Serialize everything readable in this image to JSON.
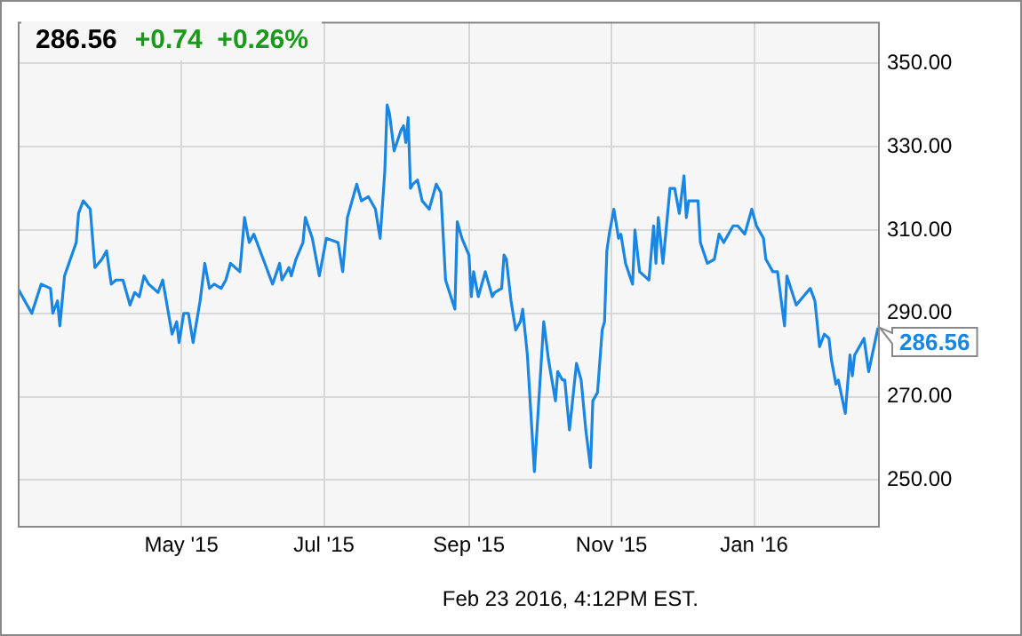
{
  "chart_data": {
    "type": "line",
    "title": "286.56",
    "subtitle": "+0.74  +0.26%",
    "color": "#1a86e3",
    "x": [
      "2015-02-20",
      "2015-02-23",
      "2015-02-26",
      "2015-03-02",
      "2015-03-06",
      "2015-03-07",
      "2015-03-09",
      "2015-03-10",
      "2015-03-12",
      "2015-03-17",
      "2015-03-18",
      "2015-03-20",
      "2015-03-23",
      "2015-03-25",
      "2015-03-28",
      "2015-03-30",
      "2015-04-01",
      "2015-04-03",
      "2015-04-06",
      "2015-04-09",
      "2015-04-11",
      "2015-04-13",
      "2015-04-15",
      "2015-04-17",
      "2015-04-21",
      "2015-04-23",
      "2015-04-27",
      "2015-04-29",
      "2015-04-30",
      "2015-05-02",
      "2015-05-04",
      "2015-05-06",
      "2015-05-09",
      "2015-05-11",
      "2015-05-13",
      "2015-05-15",
      "2015-05-18",
      "2015-05-20",
      "2015-05-22",
      "2015-05-26",
      "2015-05-28",
      "2015-05-30",
      "2015-06-01",
      "2015-06-03",
      "2015-06-05",
      "2015-06-09",
      "2015-06-12",
      "2015-06-13",
      "2015-06-16",
      "2015-06-17",
      "2015-06-19",
      "2015-06-22",
      "2015-06-23",
      "2015-06-26",
      "2015-06-29",
      "2015-07-02",
      "2015-07-07",
      "2015-07-09",
      "2015-07-11",
      "2015-07-15",
      "2015-07-17",
      "2015-07-20",
      "2015-07-23",
      "2015-07-25",
      "2015-07-27",
      "2015-07-28",
      "2015-07-29",
      "2015-07-31",
      "2015-08-03",
      "2015-08-04",
      "2015-08-05",
      "2015-08-06",
      "2015-08-07",
      "2015-08-08",
      "2015-08-10",
      "2015-08-12",
      "2015-08-15",
      "2015-08-18",
      "2015-08-20",
      "2015-08-22",
      "2015-08-26",
      "2015-08-27",
      "2015-08-29",
      "2015-09-01",
      "2015-09-02",
      "2015-09-03",
      "2015-09-05",
      "2015-09-08",
      "2015-09-11",
      "2015-09-12",
      "2015-09-15",
      "2015-09-16",
      "2015-09-17",
      "2015-09-19",
      "2015-09-21",
      "2015-09-23",
      "2015-09-24",
      "2015-09-26",
      "2015-09-29",
      "2015-10-03",
      "2015-10-05",
      "2015-10-08",
      "2015-10-09",
      "2015-10-11",
      "2015-10-12",
      "2015-10-14",
      "2015-10-17",
      "2015-10-19",
      "2015-10-21",
      "2015-10-23",
      "2015-10-24",
      "2015-10-26",
      "2015-10-28",
      "2015-10-29",
      "2015-10-30",
      "2015-10-31",
      "2015-11-02",
      "2015-11-04",
      "2015-11-05",
      "2015-11-07",
      "2015-11-10",
      "2015-11-11",
      "2015-11-13",
      "2015-11-17",
      "2015-11-19",
      "2015-11-20",
      "2015-11-21",
      "2015-11-23",
      "2015-11-26",
      "2015-11-28",
      "2015-11-30",
      "2015-12-02",
      "2015-12-03",
      "2015-12-04",
      "2015-12-08",
      "2015-12-09",
      "2015-12-12",
      "2015-12-15",
      "2015-12-17",
      "2015-12-19",
      "2015-12-23",
      "2015-12-25",
      "2015-12-28",
      "2015-12-31",
      "2016-01-02",
      "2016-01-05",
      "2016-01-06",
      "2016-01-09",
      "2016-01-11",
      "2016-01-14",
      "2016-01-15",
      "2016-01-19",
      "2016-01-22",
      "2016-01-25",
      "2016-01-27",
      "2016-01-29",
      "2016-01-31",
      "2016-02-02",
      "2016-02-03",
      "2016-02-05",
      "2016-02-06",
      "2016-02-09",
      "2016-02-11",
      "2016-02-12",
      "2016-02-13",
      "2016-02-17",
      "2016-02-19",
      "2016-02-23"
    ],
    "values": [
      296,
      293,
      290,
      297,
      296,
      290,
      293,
      287,
      299,
      307,
      314,
      317,
      315,
      301,
      303,
      305,
      297,
      298,
      298,
      292,
      295,
      294,
      299,
      297,
      295,
      298,
      285,
      288,
      283,
      290,
      290,
      283,
      293,
      302,
      296,
      297,
      296,
      298,
      302,
      300,
      313,
      307,
      309,
      306,
      303,
      297,
      302,
      298,
      301,
      299,
      303,
      307,
      313,
      308,
      299,
      308,
      307,
      300,
      313,
      321,
      317,
      318,
      315,
      308,
      324,
      340,
      338,
      329,
      334,
      335,
      331,
      337,
      320,
      321,
      322,
      317,
      315,
      321,
      319,
      298,
      291,
      312,
      308,
      304,
      294,
      300,
      294,
      300,
      294,
      295,
      296,
      304,
      303,
      293,
      286,
      288,
      291,
      280,
      252,
      288,
      279,
      269,
      276,
      274,
      274,
      262,
      278,
      274,
      262,
      253,
      269,
      271,
      286,
      288,
      305,
      309,
      315,
      308,
      309,
      302,
      297,
      310,
      300,
      298,
      311,
      302,
      313,
      302,
      320,
      320,
      314,
      323,
      313,
      317,
      317,
      307,
      302,
      303,
      309,
      307,
      311,
      311,
      309,
      315,
      311,
      308,
      303,
      300,
      300,
      287,
      299,
      292,
      294,
      296,
      293,
      282,
      285,
      284,
      279,
      273,
      274,
      266,
      280,
      275,
      280,
      284,
      276,
      286.56
    ],
    "xlim": [
      "2015-02-20",
      "2016-02-23"
    ],
    "xticks": [
      {
        "value": "2015-05-01",
        "label": "May '15"
      },
      {
        "value": "2015-07-01",
        "label": "Jul '15"
      },
      {
        "value": "2015-09-01",
        "label": "Sep '15"
      },
      {
        "value": "2015-11-01",
        "label": "Nov '15"
      },
      {
        "value": "2016-01-01",
        "label": "Jan '16"
      }
    ],
    "ylim": [
      239,
      360
    ],
    "yticks": [
      {
        "value": 250,
        "label": "250.00"
      },
      {
        "value": 270,
        "label": "270.00"
      },
      {
        "value": 290,
        "label": "290.00"
      },
      {
        "value": 310,
        "label": "310.00"
      },
      {
        "value": 330,
        "label": "330.00"
      },
      {
        "value": 350,
        "label": "350.00"
      }
    ],
    "grid": true,
    "value_labels": [
      null,
      null,
      null,
      null,
      null,
      null,
      null,
      null,
      null,
      null,
      null,
      null,
      null,
      null,
      null,
      null,
      null,
      null,
      null,
      null,
      null,
      null,
      null,
      null,
      null,
      null,
      null,
      null,
      null,
      null,
      null,
      null,
      null,
      null,
      null,
      null,
      null,
      null,
      null,
      null,
      null,
      null,
      null,
      null,
      null,
      null,
      null,
      null,
      null,
      null,
      null,
      null,
      null,
      null,
      null,
      null,
      null,
      null,
      null,
      null,
      null,
      null,
      null,
      null,
      null,
      null,
      null,
      null,
      null,
      null,
      null,
      null,
      null,
      null,
      null,
      null,
      null,
      null,
      null,
      null,
      null,
      null,
      null,
      null,
      null,
      null,
      null,
      null,
      null,
      null,
      null,
      null,
      null,
      null,
      null,
      null,
      null,
      null,
      null,
      null,
      null,
      null,
      null,
      null,
      null,
      null,
      null,
      null,
      null,
      null,
      null,
      null,
      null,
      null,
      null,
      null,
      null,
      null,
      null,
      null,
      null,
      null,
      null,
      null,
      null,
      null,
      null,
      null,
      null,
      null,
      null,
      null,
      null,
      null,
      null,
      null,
      null,
      null,
      null,
      null,
      null,
      null,
      null,
      null,
      null,
      null,
      null,
      null,
      null,
      null,
      null,
      null,
      null,
      null,
      null,
      null,
      null,
      null,
      null,
      null,
      null,
      null,
      null,
      null,
      null,
      null,
      null,
      "286.56"
    ],
    "annotations": [
      "Feb 23 2016, 4:12PM EST."
    ]
  }
}
